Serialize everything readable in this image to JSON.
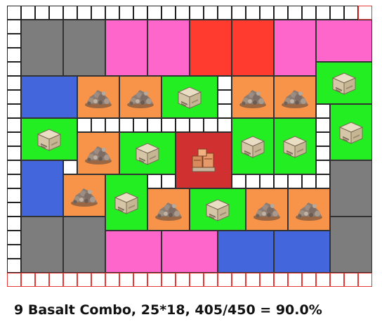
{
  "footer": {
    "caption": "9 Basalt Combo, 25*18, 405/450 = 90.0%"
  },
  "colors": {
    "gray": "#7d7d7d",
    "pink": "#ff66cc",
    "red": "#ff3b30",
    "blue": "#4466dd",
    "orange": "#f7944a",
    "green": "#22ee22",
    "warehouse": "#d13030",
    "grid_border": "#222222",
    "red_border": "#e53935"
  },
  "icons": {
    "rock": "rock-pile-icon",
    "crate": "supply-crate-icon",
    "warehouse": "warehouse-crates-icon"
  }
}
